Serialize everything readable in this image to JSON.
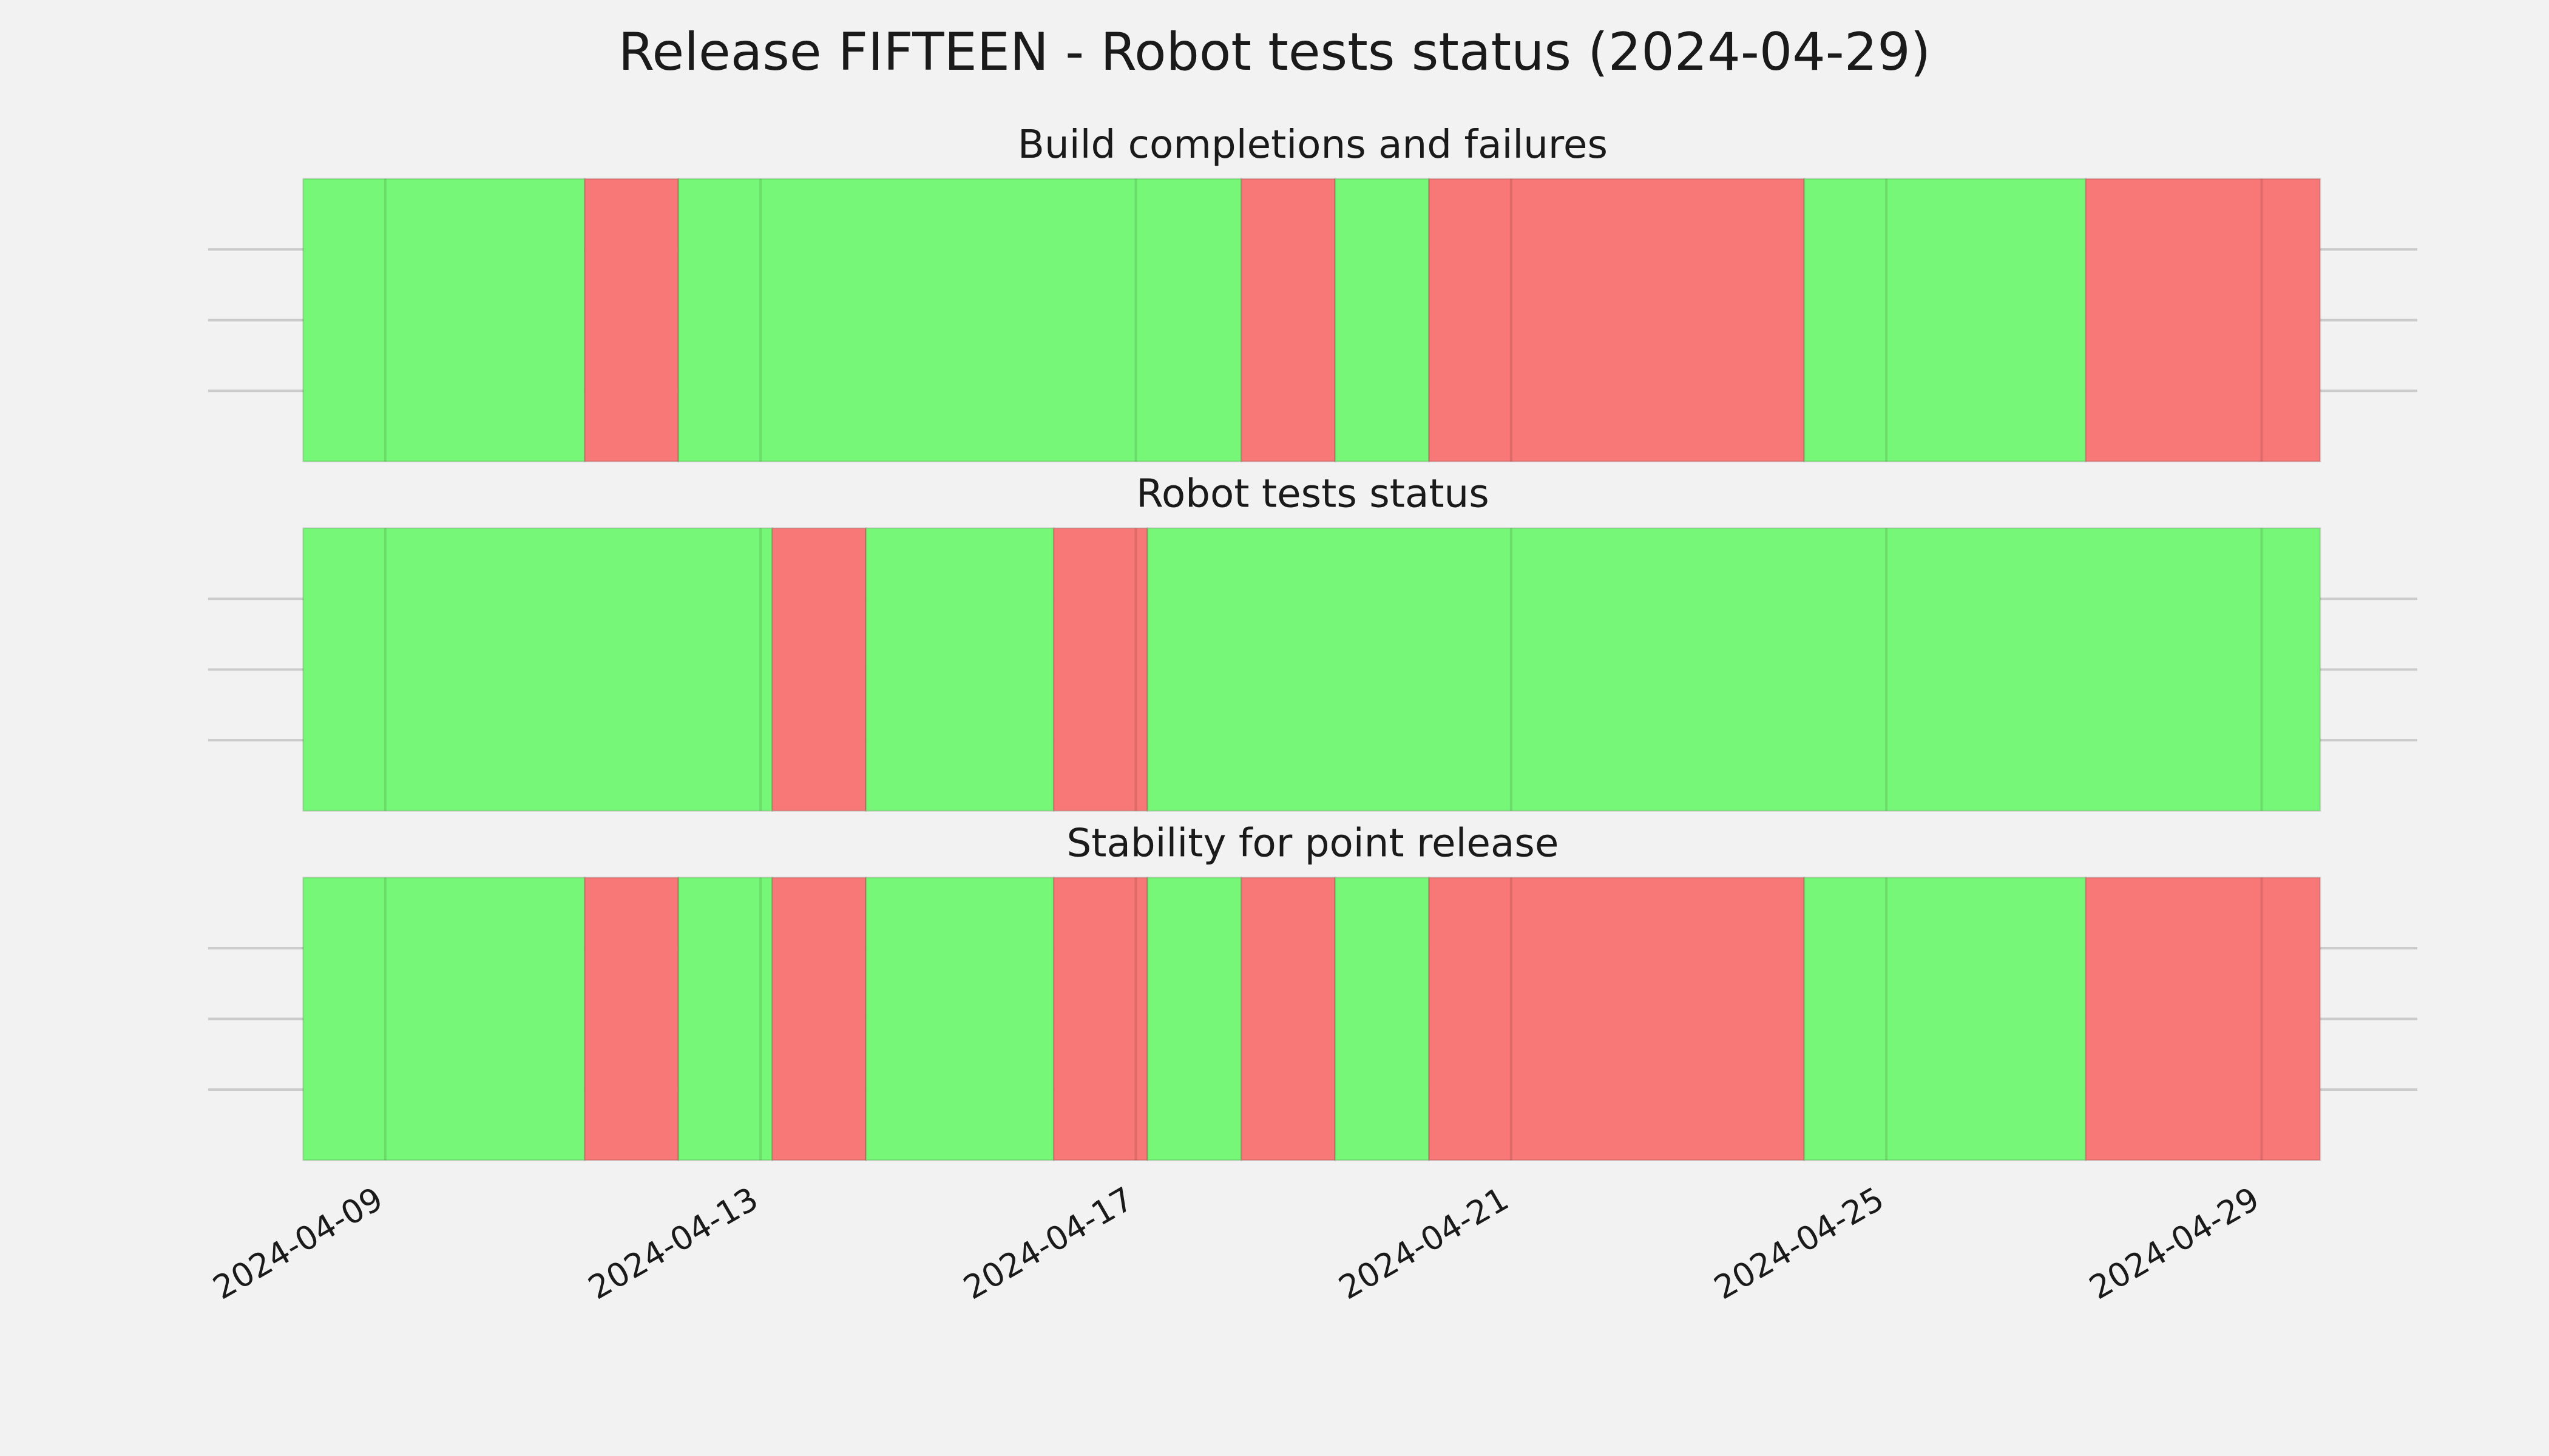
{
  "title": "Release FIFTEEN - Robot tests status (2024-04-29)",
  "chart_data": [
    {
      "type": "timeline",
      "title": "Build completions and failures",
      "xlim": [
        "2024-04-07T02:40",
        "2024-04-30T15:50"
      ],
      "xticks": [
        "2024-04-09",
        "2024-04-13",
        "2024-04-17",
        "2024-04-21",
        "2024-04-25",
        "2024-04-29"
      ],
      "ylim": [
        0,
        1
      ],
      "yticks": [
        0.25,
        0.5,
        0.75
      ],
      "grid": true,
      "segments": [
        {
          "start": "2024-04-08T03:00",
          "end": "2024-04-11T03:00",
          "color": "#77f777"
        },
        {
          "start": "2024-04-11T03:00",
          "end": "2024-04-12T03:00",
          "color": "#f87777"
        },
        {
          "start": "2024-04-12T03:00",
          "end": "2024-04-18T03:00",
          "color": "#77f777"
        },
        {
          "start": "2024-04-18T03:00",
          "end": "2024-04-19T03:00",
          "color": "#f87777"
        },
        {
          "start": "2024-04-19T03:00",
          "end": "2024-04-20T03:00",
          "color": "#77f777"
        },
        {
          "start": "2024-04-20T03:00",
          "end": "2024-04-24T03:00",
          "color": "#f87777"
        },
        {
          "start": "2024-04-24T03:00",
          "end": "2024-04-27T03:00",
          "color": "#77f777"
        },
        {
          "start": "2024-04-27T03:00",
          "end": "2024-04-29T15:00",
          "color": "#f87777"
        }
      ]
    },
    {
      "type": "timeline",
      "title": "Robot tests status",
      "xlim": [
        "2024-04-07T02:40",
        "2024-04-30T15:50"
      ],
      "xticks": [
        "2024-04-09",
        "2024-04-13",
        "2024-04-17",
        "2024-04-21",
        "2024-04-25",
        "2024-04-29"
      ],
      "ylim": [
        0,
        1
      ],
      "yticks": [
        0.25,
        0.5,
        0.75
      ],
      "grid": true,
      "segments": [
        {
          "start": "2024-04-08T03:00",
          "end": "2024-04-13T03:00",
          "color": "#77f777"
        },
        {
          "start": "2024-04-13T03:00",
          "end": "2024-04-14T03:00",
          "color": "#f87777"
        },
        {
          "start": "2024-04-14T03:00",
          "end": "2024-04-16T03:00",
          "color": "#77f777"
        },
        {
          "start": "2024-04-16T03:00",
          "end": "2024-04-17T03:00",
          "color": "#f87777"
        },
        {
          "start": "2024-04-17T03:00",
          "end": "2024-04-29T15:00",
          "color": "#77f777"
        }
      ]
    },
    {
      "type": "timeline",
      "title": "Stability for point release",
      "xlim": [
        "2024-04-07T02:40",
        "2024-04-30T15:50"
      ],
      "xticks": [
        "2024-04-09",
        "2024-04-13",
        "2024-04-17",
        "2024-04-21",
        "2024-04-25",
        "2024-04-29"
      ],
      "ylim": [
        0,
        1
      ],
      "yticks": [
        0.25,
        0.5,
        0.75
      ],
      "grid": true,
      "segments": [
        {
          "start": "2024-04-08T03:00",
          "end": "2024-04-11T03:00",
          "color": "#77f777"
        },
        {
          "start": "2024-04-11T03:00",
          "end": "2024-04-12T03:00",
          "color": "#f87777"
        },
        {
          "start": "2024-04-12T03:00",
          "end": "2024-04-13T03:00",
          "color": "#77f777"
        },
        {
          "start": "2024-04-13T03:00",
          "end": "2024-04-14T03:00",
          "color": "#f87777"
        },
        {
          "start": "2024-04-14T03:00",
          "end": "2024-04-16T03:00",
          "color": "#77f777"
        },
        {
          "start": "2024-04-16T03:00",
          "end": "2024-04-17T03:00",
          "color": "#f87777"
        },
        {
          "start": "2024-04-17T03:00",
          "end": "2024-04-18T03:00",
          "color": "#77f777"
        },
        {
          "start": "2024-04-18T03:00",
          "end": "2024-04-19T03:00",
          "color": "#f87777"
        },
        {
          "start": "2024-04-19T03:00",
          "end": "2024-04-20T03:00",
          "color": "#77f777"
        },
        {
          "start": "2024-04-20T03:00",
          "end": "2024-04-24T03:00",
          "color": "#f87777"
        },
        {
          "start": "2024-04-24T03:00",
          "end": "2024-04-27T03:00",
          "color": "#77f777"
        },
        {
          "start": "2024-04-27T03:00",
          "end": "2024-04-29T15:00",
          "color": "#f87777"
        }
      ]
    }
  ]
}
